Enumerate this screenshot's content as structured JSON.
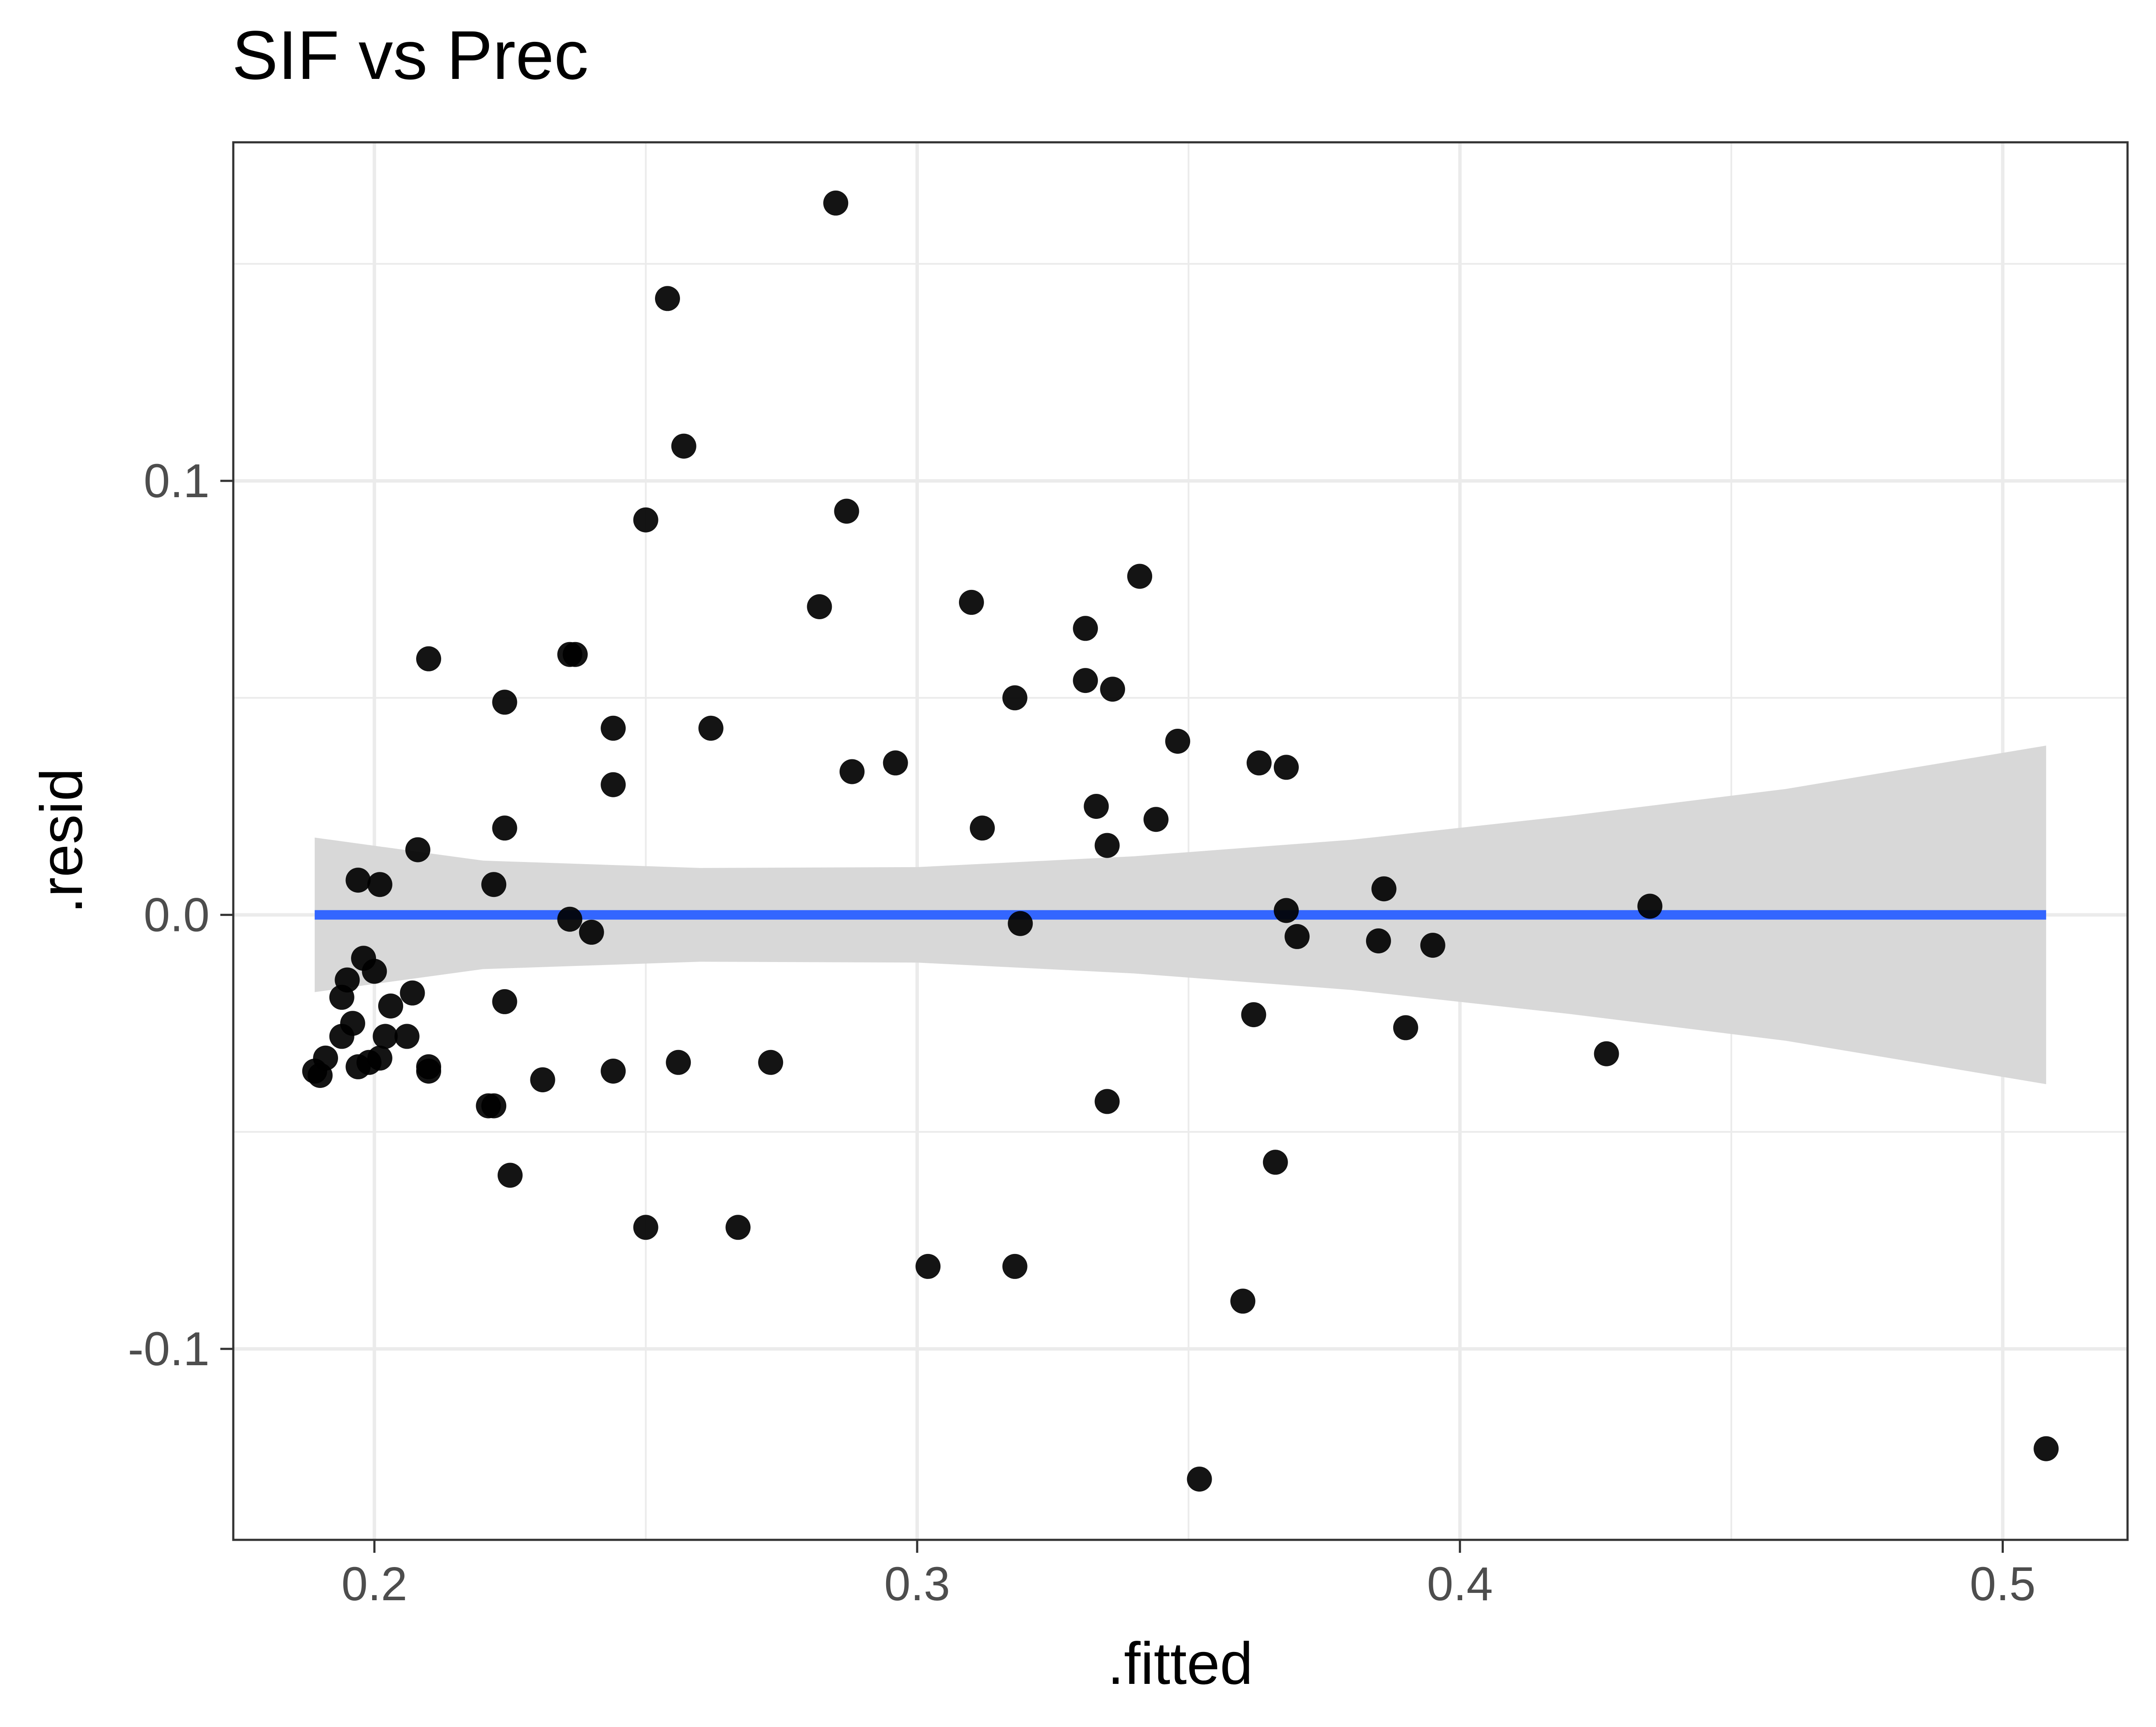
{
  "chart_data": {
    "type": "scatter",
    "title": "SIF vs Prec",
    "xlabel": ".fitted",
    "ylabel": ".resid",
    "xlim": [
      0.174,
      0.523
    ],
    "ylim": [
      -0.144,
      0.178
    ],
    "x_ticks": [
      {
        "value": 0.2,
        "label": "0.2"
      },
      {
        "value": 0.3,
        "label": "0.3"
      },
      {
        "value": 0.4,
        "label": "0.4"
      },
      {
        "value": 0.5,
        "label": "0.5"
      }
    ],
    "y_ticks": [
      {
        "value": -0.1,
        "label": "-0.1"
      },
      {
        "value": 0.0,
        "label": "0.0"
      },
      {
        "value": 0.1,
        "label": "0.1"
      }
    ],
    "x_minor_ticks": [
      0.25,
      0.35,
      0.45
    ],
    "y_minor_ticks": [
      -0.05,
      0.05,
      0.15
    ],
    "grid": true,
    "colors": {
      "points": "#000000",
      "fit_line": "#3366ff",
      "confidence_band": "#d6d6d6",
      "grid": "#ebebeb",
      "panel_border": "#333333",
      "text": "#000000",
      "tick_labels": "#4d4d4d"
    },
    "fit_line": {
      "x": [
        0.189,
        0.508
      ],
      "y": [
        0.0,
        0.0
      ]
    },
    "confidence_band": {
      "x": [
        0.189,
        0.22,
        0.26,
        0.3,
        0.34,
        0.38,
        0.42,
        0.46,
        0.508
      ],
      "upper": [
        0.0178,
        0.0125,
        0.0108,
        0.011,
        0.0135,
        0.0173,
        0.0228,
        0.029,
        0.039
      ],
      "lower": [
        -0.0178,
        -0.0125,
        -0.0108,
        -0.011,
        -0.0135,
        -0.0173,
        -0.0228,
        -0.029,
        -0.039
      ]
    },
    "points": [
      {
        "x": 0.285,
        "y": 0.164
      },
      {
        "x": 0.254,
        "y": 0.142
      },
      {
        "x": 0.257,
        "y": 0.108
      },
      {
        "x": 0.25,
        "y": 0.091
      },
      {
        "x": 0.287,
        "y": 0.093
      },
      {
        "x": 0.282,
        "y": 0.071
      },
      {
        "x": 0.31,
        "y": 0.072
      },
      {
        "x": 0.341,
        "y": 0.078
      },
      {
        "x": 0.331,
        "y": 0.066
      },
      {
        "x": 0.331,
        "y": 0.054
      },
      {
        "x": 0.336,
        "y": 0.052
      },
      {
        "x": 0.318,
        "y": 0.05
      },
      {
        "x": 0.21,
        "y": 0.059
      },
      {
        "x": 0.236,
        "y": 0.06
      },
      {
        "x": 0.237,
        "y": 0.06
      },
      {
        "x": 0.224,
        "y": 0.049
      },
      {
        "x": 0.244,
        "y": 0.043
      },
      {
        "x": 0.262,
        "y": 0.043
      },
      {
        "x": 0.244,
        "y": 0.03
      },
      {
        "x": 0.288,
        "y": 0.033
      },
      {
        "x": 0.296,
        "y": 0.035
      },
      {
        "x": 0.348,
        "y": 0.04
      },
      {
        "x": 0.363,
        "y": 0.035
      },
      {
        "x": 0.368,
        "y": 0.034
      },
      {
        "x": 0.333,
        "y": 0.025
      },
      {
        "x": 0.344,
        "y": 0.022
      },
      {
        "x": 0.312,
        "y": 0.02
      },
      {
        "x": 0.224,
        "y": 0.02
      },
      {
        "x": 0.208,
        "y": 0.015
      },
      {
        "x": 0.335,
        "y": 0.016
      },
      {
        "x": 0.197,
        "y": 0.008
      },
      {
        "x": 0.201,
        "y": 0.007
      },
      {
        "x": 0.222,
        "y": 0.007
      },
      {
        "x": 0.386,
        "y": 0.006
      },
      {
        "x": 0.435,
        "y": 0.002
      },
      {
        "x": 0.368,
        "y": 0.001
      },
      {
        "x": 0.236,
        "y": -0.001
      },
      {
        "x": 0.24,
        "y": -0.004
      },
      {
        "x": 0.319,
        "y": -0.002
      },
      {
        "x": 0.37,
        "y": -0.005
      },
      {
        "x": 0.385,
        "y": -0.006
      },
      {
        "x": 0.395,
        "y": -0.007
      },
      {
        "x": 0.198,
        "y": -0.01
      },
      {
        "x": 0.2,
        "y": -0.013
      },
      {
        "x": 0.195,
        "y": -0.015
      },
      {
        "x": 0.194,
        "y": -0.019
      },
      {
        "x": 0.207,
        "y": -0.018
      },
      {
        "x": 0.203,
        "y": -0.021
      },
      {
        "x": 0.224,
        "y": -0.02
      },
      {
        "x": 0.196,
        "y": -0.025
      },
      {
        "x": 0.202,
        "y": -0.028
      },
      {
        "x": 0.206,
        "y": -0.028
      },
      {
        "x": 0.194,
        "y": -0.028
      },
      {
        "x": 0.362,
        "y": -0.023
      },
      {
        "x": 0.39,
        "y": -0.026
      },
      {
        "x": 0.427,
        "y": -0.032
      },
      {
        "x": 0.191,
        "y": -0.033
      },
      {
        "x": 0.197,
        "y": -0.035
      },
      {
        "x": 0.199,
        "y": -0.034
      },
      {
        "x": 0.201,
        "y": -0.033
      },
      {
        "x": 0.189,
        "y": -0.036
      },
      {
        "x": 0.19,
        "y": -0.037
      },
      {
        "x": 0.21,
        "y": -0.035
      },
      {
        "x": 0.21,
        "y": -0.036
      },
      {
        "x": 0.244,
        "y": -0.036
      },
      {
        "x": 0.256,
        "y": -0.034
      },
      {
        "x": 0.273,
        "y": -0.034
      },
      {
        "x": 0.231,
        "y": -0.038
      },
      {
        "x": 0.221,
        "y": -0.044
      },
      {
        "x": 0.222,
        "y": -0.044
      },
      {
        "x": 0.335,
        "y": -0.043
      },
      {
        "x": 0.366,
        "y": -0.057
      },
      {
        "x": 0.225,
        "y": -0.06
      },
      {
        "x": 0.25,
        "y": -0.072
      },
      {
        "x": 0.267,
        "y": -0.072
      },
      {
        "x": 0.302,
        "y": -0.081
      },
      {
        "x": 0.318,
        "y": -0.081
      },
      {
        "x": 0.36,
        "y": -0.089
      },
      {
        "x": 0.352,
        "y": -0.13
      },
      {
        "x": 0.508,
        "y": -0.123
      }
    ]
  }
}
